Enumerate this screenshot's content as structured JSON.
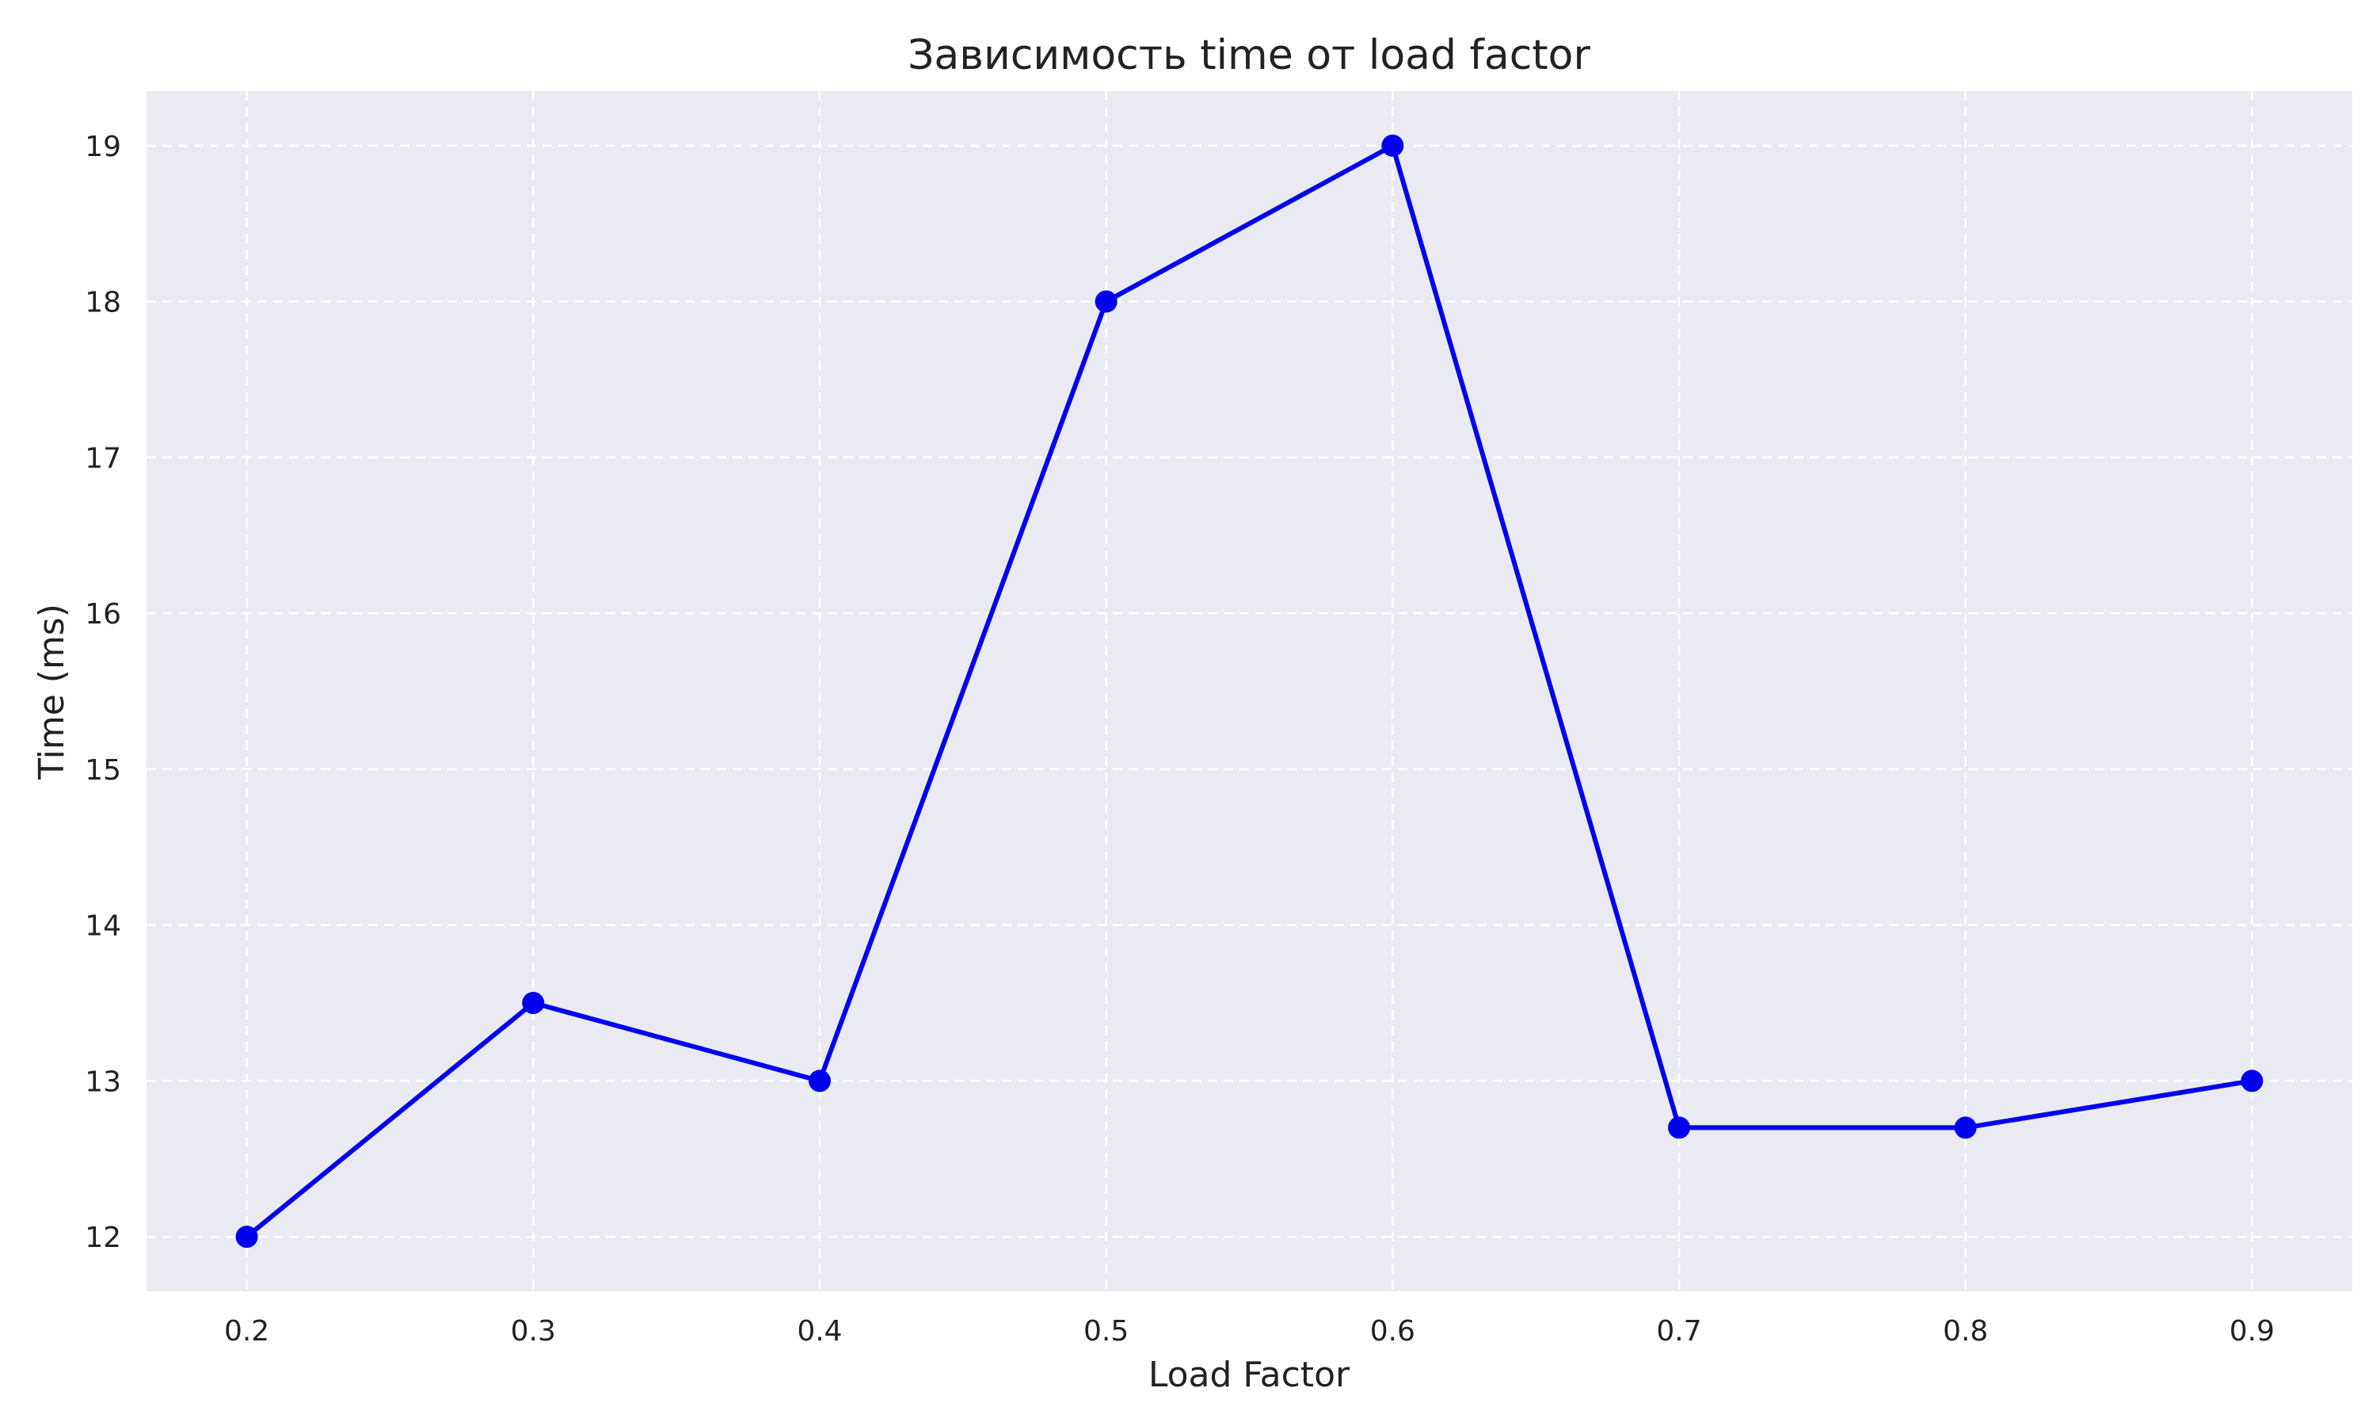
{
  "colors": {
    "plot_background": "#EAEAF2",
    "grid": "#FFFFFF",
    "line": "#0000EE",
    "marker": "#0000EE",
    "text": "#222222"
  },
  "chart_data": {
    "type": "line",
    "title": "Зависимость time от load factor",
    "xlabel": "Load Factor",
    "ylabel": "Time (ms)",
    "xlim": [
      0.165,
      0.935
    ],
    "ylim": [
      11.65,
      19.35
    ],
    "x_ticks": [
      0.2,
      0.3,
      0.4,
      0.5,
      0.6,
      0.7,
      0.8,
      0.9
    ],
    "x_tick_labels": [
      "0.2",
      "0.3",
      "0.4",
      "0.5",
      "0.6",
      "0.7",
      "0.8",
      "0.9"
    ],
    "y_ticks": [
      12,
      13,
      14,
      15,
      16,
      17,
      18,
      19
    ],
    "y_tick_labels": [
      "12",
      "13",
      "14",
      "15",
      "16",
      "17",
      "18",
      "19"
    ],
    "grid": true,
    "grid_style": "dashed",
    "legend": false,
    "series": [
      {
        "x": [
          0.2,
          0.3,
          0.4,
          0.5,
          0.6,
          0.7,
          0.8,
          0.9
        ],
        "values": [
          12.0,
          13.5,
          13.0,
          18.0,
          19.0,
          12.7,
          12.7,
          13.0
        ],
        "marker": "circle"
      }
    ]
  }
}
